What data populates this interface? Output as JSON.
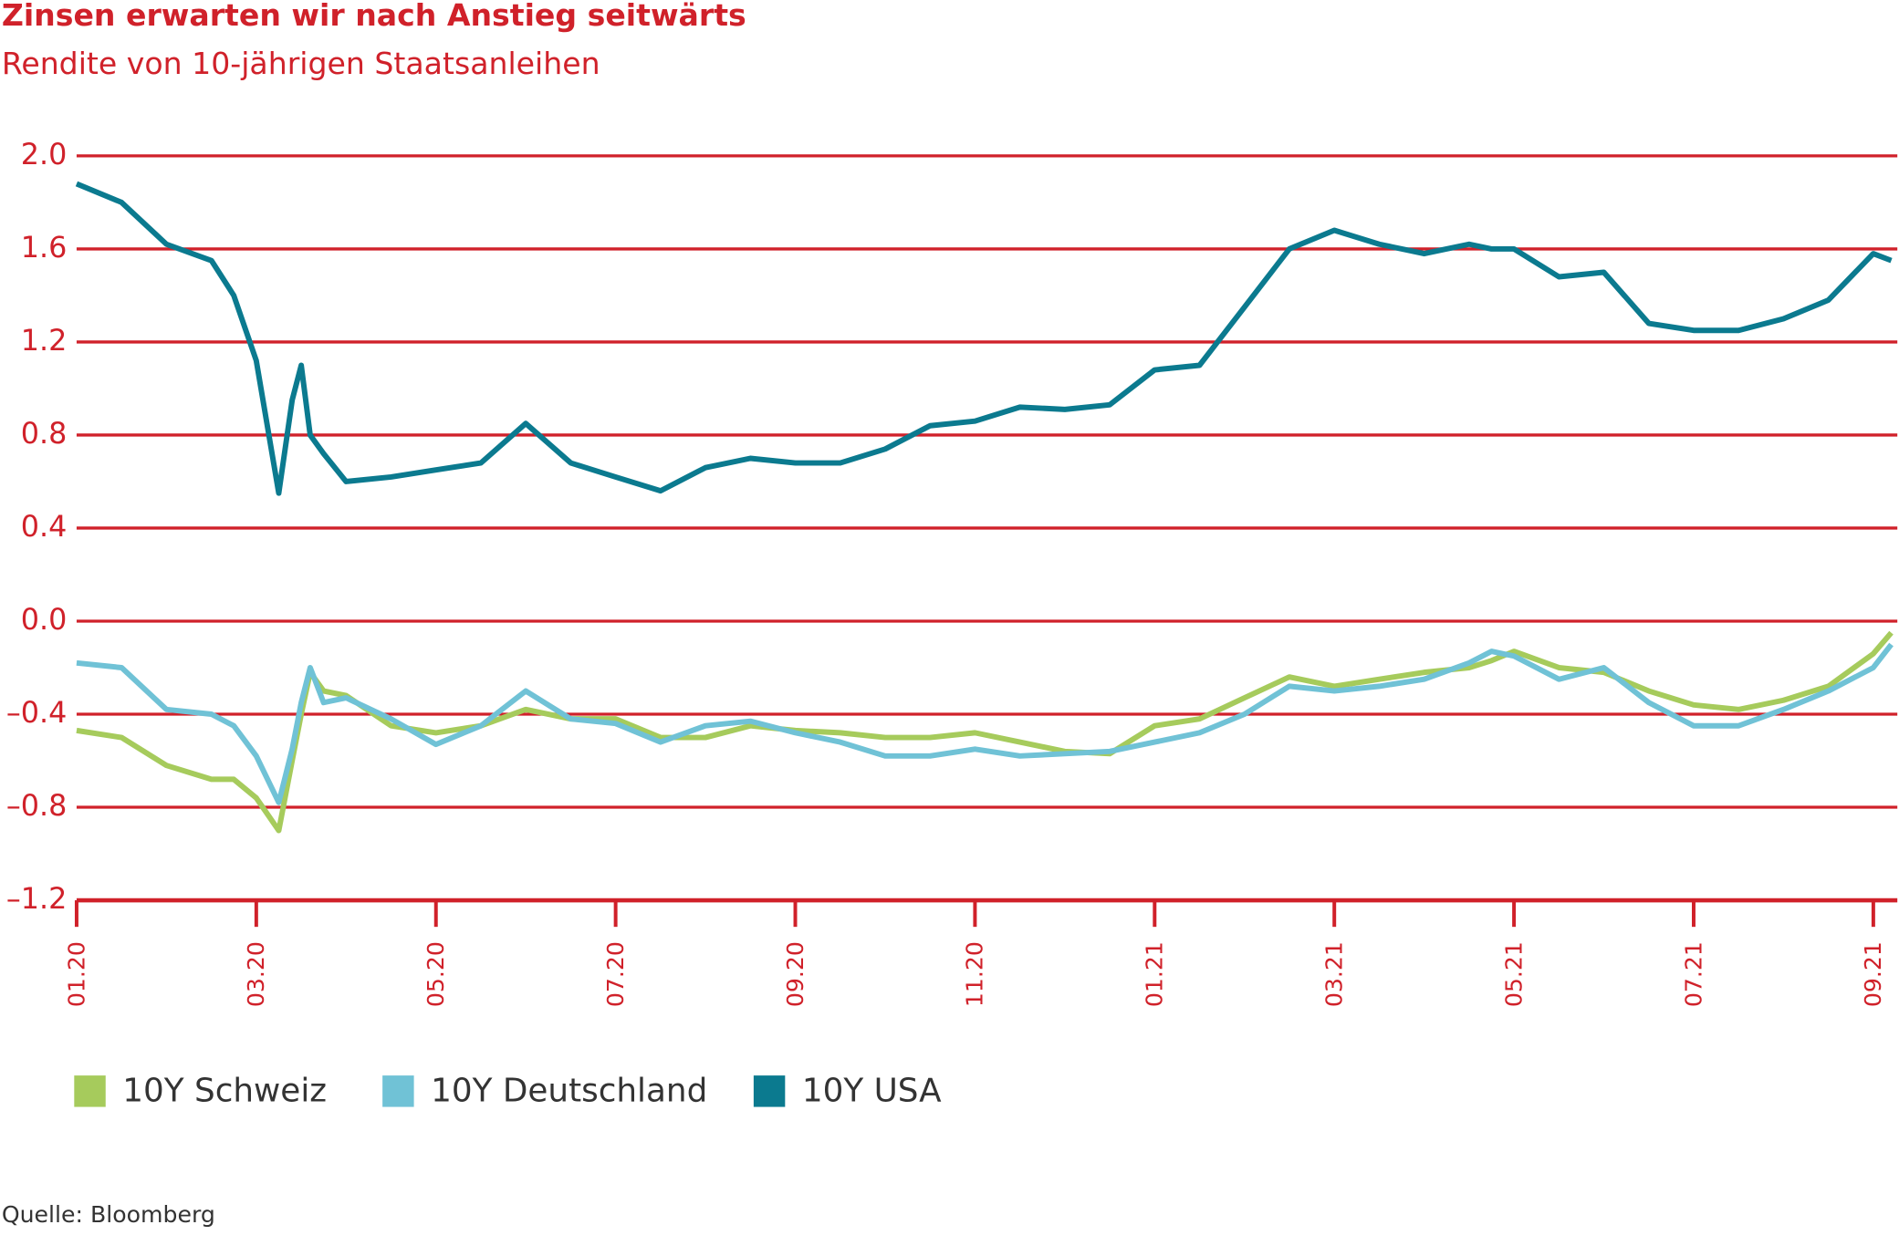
{
  "chart_data": {
    "type": "line",
    "title": "Zinsen erwarten wir nach Anstieg seitwärts",
    "subtitle": "Rendite von 10-jährigen Staatsanleihen",
    "source": "Quelle: Bloomberg",
    "x": [
      0,
      0.5,
      1,
      1.5,
      1.75,
      2,
      2.25,
      2.4,
      2.5,
      2.6,
      2.75,
      3,
      3.5,
      4,
      4.5,
      5,
      5.5,
      6,
      6.5,
      7,
      7.5,
      8,
      8.5,
      9,
      9.5,
      10,
      10.5,
      11,
      11.5,
      12,
      12.5,
      13,
      13.5,
      14,
      14.5,
      15,
      15.5,
      15.75,
      16,
      16.5,
      17,
      17.5,
      18,
      18.5,
      19,
      19.5,
      20,
      20.2
    ],
    "xlim": [
      0,
      20.2
    ],
    "xticks": [
      {
        "value": 0,
        "label": "01.20"
      },
      {
        "value": 2,
        "label": "03.20"
      },
      {
        "value": 4,
        "label": "05.20"
      },
      {
        "value": 6,
        "label": "07.20"
      },
      {
        "value": 8,
        "label": "09.20"
      },
      {
        "value": 10,
        "label": "11.20"
      },
      {
        "value": 12,
        "label": "01.21"
      },
      {
        "value": 14,
        "label": "03.21"
      },
      {
        "value": 16,
        "label": "05.21"
      },
      {
        "value": 18,
        "label": "07.21"
      },
      {
        "value": 20,
        "label": "09.21"
      }
    ],
    "ylim": [
      -1.2,
      2
    ],
    "yticks": [
      {
        "value": 2,
        "label": "2.0"
      },
      1.6,
      1.2,
      0.8,
      0.4,
      {
        "value": 0,
        "label": "0.0"
      },
      {
        "value": -0.4,
        "label": "–0.4"
      },
      {
        "value": -0.8,
        "label": "–0.8"
      },
      {
        "value": -1.2,
        "label": "–1.2"
      }
    ],
    "grid": true,
    "series": [
      {
        "name": "10Y Schweiz",
        "color": "#a6cb5c",
        "values": [
          -0.47,
          -0.5,
          -0.62,
          -0.68,
          -0.68,
          -0.76,
          -0.9,
          -0.6,
          -0.4,
          -0.22,
          -0.3,
          -0.32,
          -0.45,
          -0.48,
          -0.45,
          -0.38,
          -0.42,
          -0.42,
          -0.5,
          -0.5,
          -0.45,
          -0.47,
          -0.48,
          -0.5,
          -0.5,
          -0.48,
          -0.52,
          -0.56,
          -0.57,
          -0.45,
          -0.42,
          -0.33,
          -0.24,
          -0.28,
          -0.25,
          -0.22,
          -0.2,
          -0.17,
          -0.13,
          -0.2,
          -0.22,
          -0.3,
          -0.36,
          -0.38,
          -0.34,
          -0.28,
          -0.14,
          -0.05
        ]
      },
      {
        "name": "10Y Deutschland",
        "color": "#70c2d6",
        "values": [
          -0.18,
          -0.2,
          -0.38,
          -0.4,
          -0.45,
          -0.58,
          -0.78,
          -0.55,
          -0.35,
          -0.2,
          -0.35,
          -0.33,
          -0.42,
          -0.53,
          -0.45,
          -0.3,
          -0.42,
          -0.44,
          -0.52,
          -0.45,
          -0.43,
          -0.48,
          -0.52,
          -0.58,
          -0.58,
          -0.55,
          -0.58,
          -0.57,
          -0.56,
          -0.52,
          -0.48,
          -0.4,
          -0.28,
          -0.3,
          -0.28,
          -0.25,
          -0.18,
          -0.13,
          -0.15,
          -0.25,
          -0.2,
          -0.35,
          -0.45,
          -0.45,
          -0.38,
          -0.3,
          -0.2,
          -0.1
        ]
      },
      {
        "name": "10Y USA",
        "color": "#0b7a8f",
        "values": [
          1.88,
          1.8,
          1.62,
          1.55,
          1.4,
          1.12,
          0.55,
          0.95,
          1.1,
          0.8,
          0.72,
          0.6,
          0.62,
          0.65,
          0.68,
          0.85,
          0.68,
          0.62,
          0.56,
          0.66,
          0.7,
          0.68,
          0.68,
          0.74,
          0.84,
          0.86,
          0.92,
          0.91,
          0.93,
          1.08,
          1.1,
          1.35,
          1.6,
          1.68,
          1.62,
          1.58,
          1.62,
          1.6,
          1.6,
          1.48,
          1.5,
          1.28,
          1.25,
          1.25,
          1.3,
          1.38,
          1.58,
          1.55
        ]
      }
    ],
    "axis_color": "#d0212a"
  }
}
